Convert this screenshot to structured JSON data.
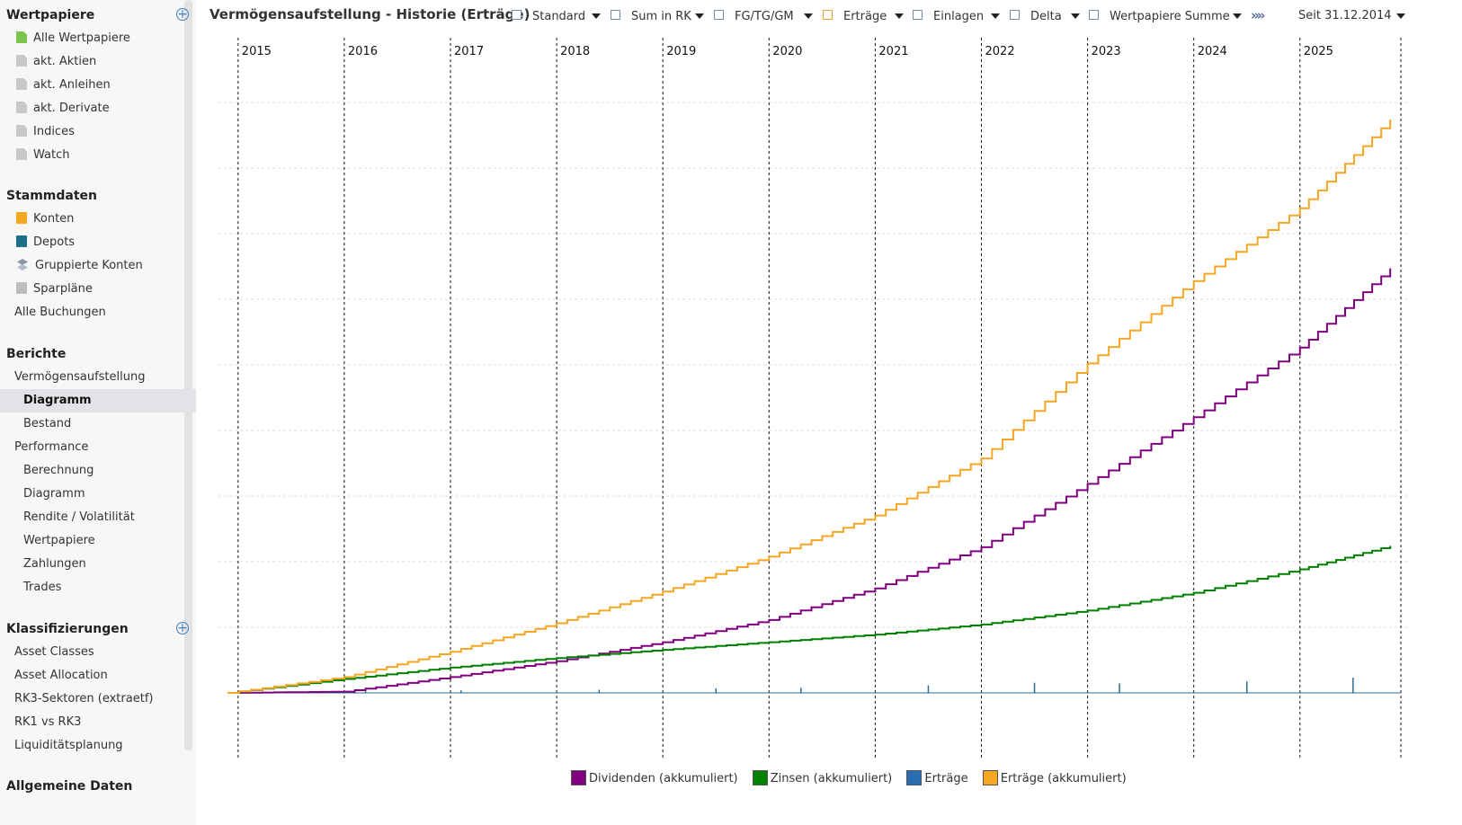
{
  "sidebar": {
    "sections": {
      "wertpapiere": {
        "title": "Wertpapiere",
        "items": [
          {
            "label": "Alle Wertpapiere",
            "icon": "document-icon-green"
          },
          {
            "label": "akt. Aktien",
            "icon": "document-icon"
          },
          {
            "label": "akt. Anleihen",
            "icon": "document-icon"
          },
          {
            "label": "akt. Derivate",
            "icon": "document-icon"
          },
          {
            "label": "Indices",
            "icon": "document-icon"
          },
          {
            "label": "Watch",
            "icon": "document-icon"
          }
        ]
      },
      "stammdaten": {
        "title": "Stammdaten",
        "items": [
          {
            "label": "Konten",
            "icon": "account-icon"
          },
          {
            "label": "Depots",
            "icon": "depot-icon"
          },
          {
            "label": "Gruppierte Konten",
            "icon": "layers-icon"
          },
          {
            "label": "Sparpläne",
            "icon": "savings-plan-icon"
          },
          {
            "label": "Alle Buchungen"
          }
        ]
      },
      "berichte": {
        "title": "Berichte",
        "items": [
          {
            "label": "Vermögensaufstellung"
          },
          {
            "label": "Diagramm",
            "selected": true
          },
          {
            "label": "Bestand"
          },
          {
            "label": "Performance"
          },
          {
            "label": "Berechnung"
          },
          {
            "label": "Diagramm"
          },
          {
            "label": "Rendite / Volatilität"
          },
          {
            "label": "Wertpapiere"
          },
          {
            "label": "Zahlungen"
          },
          {
            "label": "Trades"
          }
        ]
      },
      "klassifizierungen": {
        "title": "Klassifizierungen",
        "items": [
          {
            "label": "Asset Classes"
          },
          {
            "label": "Asset Allocation"
          },
          {
            "label": "RK3-Sektoren (extraetf)"
          },
          {
            "label": "RK1 vs RK3"
          },
          {
            "label": "Liquiditätsplanung"
          }
        ]
      },
      "allgemein": {
        "title": "Allgemeine Daten"
      }
    }
  },
  "toolbar": {
    "title": "Vermögensaufstellung - Historie (Erträge)",
    "options": [
      {
        "label": "Standard"
      },
      {
        "label": "Sum in RK"
      },
      {
        "label": "FG/TG/GM"
      },
      {
        "label": "Erträge",
        "active": true
      },
      {
        "label": "Einlagen"
      },
      {
        "label": "Delta"
      },
      {
        "label": "Wertpapiere Summe"
      }
    ],
    "more_icon": "double-chevron-right-icon",
    "since_label": "Seit 31.12.2014"
  },
  "chart_data": {
    "type": "line",
    "x_tick_labels": [
      "2015",
      "2016",
      "2017",
      "2018",
      "2019",
      "2020",
      "2021",
      "2022",
      "2023",
      "2024",
      "2025"
    ],
    "y_tick_labels": [],
    "y_axis_values_visible": false,
    "grid": true,
    "series": [
      {
        "name": "Dividenden (akkumuliert)",
        "color": "#800080",
        "x": [
          2014.9,
          2016.0,
          2017.0,
          2018.0,
          2019.0,
          2020.0,
          2021.0,
          2022.0,
          2023.0,
          2024.0,
          2025.0,
          2025.85
        ],
        "y": [
          0,
          2,
          25,
          50,
          80,
          115,
          165,
          230,
          330,
          435,
          545,
          670
        ]
      },
      {
        "name": "Zinsen (akkumuliert)",
        "color": "#008000",
        "x": [
          2014.9,
          2016.0,
          2017.0,
          2018.0,
          2019.0,
          2020.0,
          2021.0,
          2022.0,
          2023.0,
          2024.0,
          2025.0,
          2025.85
        ],
        "y": [
          0,
          22,
          40,
          55,
          68,
          80,
          92,
          108,
          130,
          158,
          195,
          232
        ]
      },
      {
        "name": "Erträge",
        "color": "#2a6d8f",
        "x": [
          2016.2,
          2017.1,
          2018.4,
          2019.5,
          2020.3,
          2021.5,
          2022.5,
          2023.3,
          2024.5,
          2025.5
        ],
        "y": [
          3,
          4,
          5,
          7,
          8,
          12,
          16,
          15,
          18,
          24
        ]
      },
      {
        "name": "Erträge (akkumuliert)",
        "color": "#f5a623",
        "x": [
          2014.9,
          2016.0,
          2017.0,
          2018.0,
          2019.0,
          2020.0,
          2021.0,
          2022.0,
          2023.0,
          2024.0,
          2025.0,
          2025.85
        ],
        "y": [
          0,
          25,
          65,
          110,
          160,
          215,
          280,
          370,
          520,
          650,
          765,
          905
        ]
      }
    ],
    "legend": [
      "Dividenden (akkumuliert)",
      "Zinsen (akkumuliert)",
      "Erträge",
      "Erträge (akkumuliert)"
    ],
    "legend_position": "bottom",
    "xlim": [
      2014.9,
      2025.95
    ],
    "ylim": [
      0,
      1000
    ]
  }
}
